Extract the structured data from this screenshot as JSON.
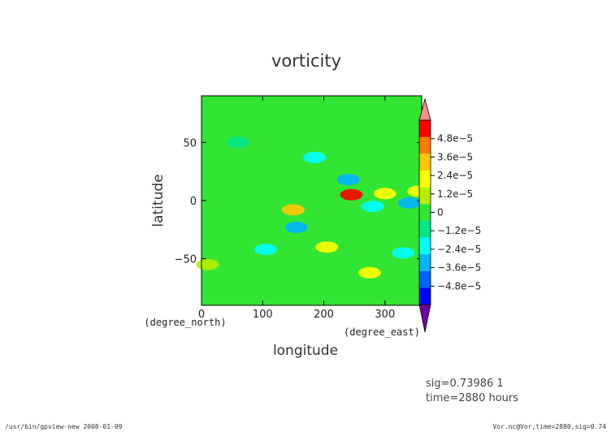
{
  "chart_data": {
    "type": "heatmap",
    "title": "vorticity",
    "xlabel": "longitude",
    "ylabel": "latitude",
    "x_unit": "(degree_east)",
    "y_unit": "(degree_north)",
    "xlim": [
      0,
      360
    ],
    "ylim": [
      -90,
      90
    ],
    "x_ticks": [
      0,
      100,
      200,
      300
    ],
    "x_tick_labels": [
      "0",
      "100",
      "200",
      "300"
    ],
    "y_ticks": [
      -50,
      0,
      50
    ],
    "y_tick_labels": [
      "−50",
      "0",
      "50"
    ],
    "colorbar": {
      "vmin": -6e-05,
      "vmax": 6e-05,
      "tick_values": [
        4.8e-05,
        3.6e-05,
        2.4e-05,
        1.2e-05,
        0,
        -1.2e-05,
        -2.4e-05,
        -3.6e-05,
        -4.8e-05
      ],
      "tick_labels": [
        "4.8e−5",
        "3.6e−5",
        "2.4e−5",
        "1.2e−5",
        "0",
        "−1.2e−5",
        "−2.4e−5",
        "−3.6e−5",
        "−4.8e−5"
      ],
      "colors_low_to_high": [
        "#7000a0",
        "#0000ff",
        "#0064ff",
        "#00b4ff",
        "#00ffff",
        "#00e68c",
        "#32e632",
        "#b4f000",
        "#ffff00",
        "#ffc800",
        "#ff7800",
        "#ff0000",
        "#ff8c8c"
      ]
    },
    "features": [
      {
        "lon": 245,
        "lat": 5,
        "value": 5e-05
      },
      {
        "lon": 150,
        "lat": -8,
        "value": 3e-05
      },
      {
        "lon": 300,
        "lat": 6,
        "value": 2.5e-05
      },
      {
        "lon": 355,
        "lat": 8,
        "value": 2e-05
      },
      {
        "lon": 205,
        "lat": -40,
        "value": 2e-05
      },
      {
        "lon": 275,
        "lat": -62,
        "value": 2e-05
      },
      {
        "lon": 10,
        "lat": -55,
        "value": 1.5e-05
      },
      {
        "lon": 240,
        "lat": 18,
        "value": -3e-05
      },
      {
        "lon": 185,
        "lat": 37,
        "value": -2.5e-05
      },
      {
        "lon": 155,
        "lat": -23,
        "value": -3e-05
      },
      {
        "lon": 340,
        "lat": -2,
        "value": -3e-05
      },
      {
        "lon": 330,
        "lat": -45,
        "value": -2.5e-05
      },
      {
        "lon": 280,
        "lat": -5,
        "value": -2e-05
      },
      {
        "lon": 105,
        "lat": -42,
        "value": -2e-05
      },
      {
        "lon": 60,
        "lat": 50,
        "value": -1.5e-05
      }
    ]
  },
  "info": {
    "line1": "sig=0.73986 1",
    "line2": "time=2880 hours"
  },
  "footer": {
    "left": "/usr/bin/gpview-new  2008-01-09",
    "right": "Vor.nc@Vor,time=2880,sig=0.74"
  }
}
